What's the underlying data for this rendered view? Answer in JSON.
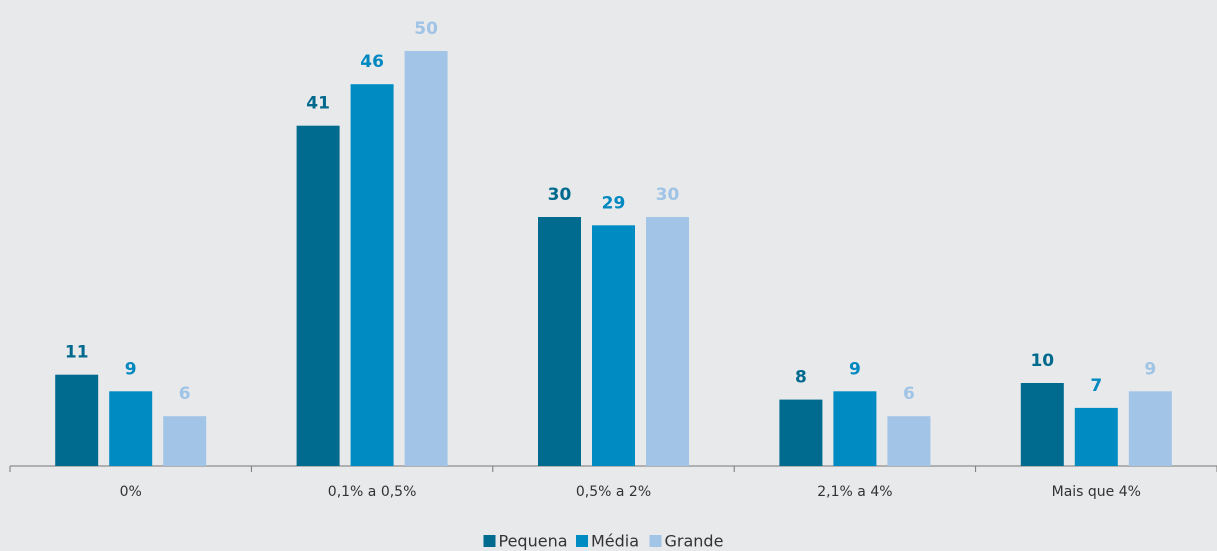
{
  "chart_data": {
    "type": "bar",
    "categories": [
      "0%",
      "0,1% a 0,5%",
      "0,5% a 2%",
      "2,1% a 4%",
      "Mais que 4%"
    ],
    "series": [
      {
        "name": "Pequena",
        "color": "#006b8f",
        "values": [
          11,
          41,
          30,
          8,
          10
        ]
      },
      {
        "name": "Média",
        "color": "#008cc2",
        "values": [
          9,
          46,
          29,
          9,
          7
        ]
      },
      {
        "name": "Grande",
        "color": "#a2c4e6",
        "values": [
          6,
          50,
          30,
          6,
          9
        ]
      }
    ],
    "legend": "bottom"
  }
}
